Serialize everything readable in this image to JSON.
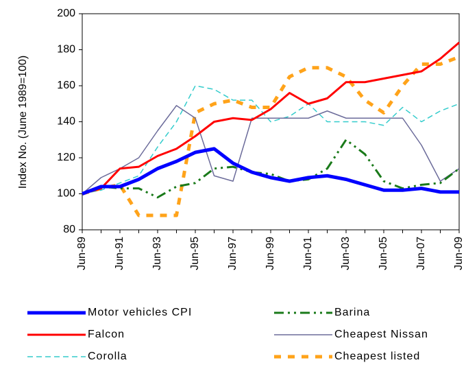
{
  "chart_data": {
    "type": "line",
    "y_label": "Index No. (June 1989=100)",
    "categories": [
      "Jun-89",
      null,
      "Jun-91",
      null,
      "Jun-93",
      null,
      "Jun-95",
      null,
      "Jun-97",
      null,
      "Jun-99",
      null,
      "Jun-01",
      null,
      "Jun-03",
      null,
      "Jun-05",
      null,
      "Jun-07",
      null,
      "Jun-09"
    ],
    "series": [
      {
        "name": "Motor vehicles CPI",
        "color": "#0000ff",
        "values": [
          100,
          104,
          104,
          108,
          114,
          118,
          123,
          125,
          117,
          112,
          109,
          107,
          109,
          110,
          108,
          105,
          102,
          102,
          103,
          101,
          101
        ]
      },
      {
        "name": "Barina",
        "color": "#1a7a1a",
        "values": [
          100,
          104,
          103,
          103,
          98,
          104,
          106,
          114,
          115,
          112,
          111,
          107,
          108,
          114,
          130,
          122,
          107,
          103,
          105,
          106,
          114
        ]
      },
      {
        "name": "Falcon",
        "color": "#ff0000",
        "values": [
          100,
          103,
          114,
          115,
          121,
          125,
          132,
          140,
          142,
          141,
          147,
          156,
          150,
          153,
          162,
          162,
          164,
          166,
          168,
          175,
          184
        ]
      },
      {
        "name": "Cheapest Nissan",
        "color": "#6b6b9a",
        "values": [
          100,
          109,
          114,
          120,
          135,
          149,
          142,
          110,
          107,
          142,
          142,
          142,
          142,
          146,
          142,
          142,
          142,
          142,
          127,
          107,
          114
        ]
      },
      {
        "name": "Corolla",
        "color": "#33cccc",
        "values": [
          100,
          102,
          106,
          110,
          126,
          140,
          160,
          158,
          152,
          152,
          140,
          143,
          150,
          140,
          140,
          140,
          138,
          148,
          140,
          146,
          150
        ]
      },
      {
        "name": "Cheapest listed",
        "color": "#ffa31a",
        "values": [
          100,
          103,
          105,
          88,
          88,
          88,
          145,
          150,
          152,
          148,
          148,
          165,
          170,
          170,
          165,
          152,
          145,
          160,
          172,
          172,
          176
        ]
      }
    ],
    "ylim": [
      80,
      200
    ],
    "yticks": [
      80,
      100,
      120,
      140,
      160,
      180,
      200
    ],
    "grid": false
  }
}
